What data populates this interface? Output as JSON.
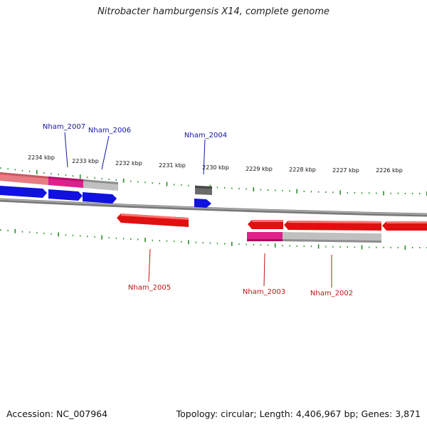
{
  "title": "Nitrobacter hamburgensis X14, complete genome",
  "footer": {
    "accession": "Accession: NC_007964",
    "summary": "Topology: circular; Length: 4,406,967 bp; Genes: 3,871"
  },
  "colors": {
    "forward_cds": "#1010e0",
    "reverse_cds": "#e01010",
    "gene_pink": "#e0208a",
    "gene_salmon": "#e87c82",
    "gene_gray": "#b8b8b8",
    "gene_dark": "#6a6a6a",
    "backbone": "#808080",
    "tick": "#2a8a2a",
    "forward_label": "#1414a8",
    "reverse_label": "#c41414"
  },
  "ruler": {
    "unit": "kbp",
    "labels": [
      "2234 kbp",
      "2233 kbp",
      "2232 kbp",
      "2231 kbp",
      "2230 kbp",
      "2229 kbp",
      "2228 kbp",
      "2227 kbp",
      "2226 kbp"
    ]
  },
  "genes": [
    {
      "name": "Nham_2007",
      "strand": "forward"
    },
    {
      "name": "Nham_2006",
      "strand": "forward"
    },
    {
      "name": "Nham_2004",
      "strand": "forward"
    },
    {
      "name": "Nham_2005",
      "strand": "reverse"
    },
    {
      "name": "Nham_2003",
      "strand": "reverse"
    },
    {
      "name": "Nham_2002",
      "strand": "reverse"
    }
  ]
}
